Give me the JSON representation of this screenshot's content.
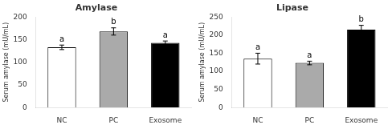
{
  "chart_data": [
    {
      "type": "bar",
      "title": "Amylase",
      "ylabel": "Serum amylase (mU/mL)",
      "categories": [
        "NC",
        "PC",
        "Exosome"
      ],
      "values": [
        133,
        168,
        143
      ],
      "errors": [
        5,
        8,
        4
      ],
      "colors": [
        "white",
        "#aaaaaa",
        "black"
      ],
      "annotations": [
        "a",
        "b",
        "a"
      ],
      "ylim": [
        0,
        200
      ],
      "yticks": [
        0,
        50,
        100,
        150,
        200
      ],
      "grid": false
    },
    {
      "type": "bar",
      "title": "Lipase",
      "ylabel": "Serum amylase (mU/mL)",
      "categories": [
        "NC",
        "PC",
        "Exosome"
      ],
      "values": [
        135,
        123,
        215
      ],
      "errors": [
        15,
        5,
        12
      ],
      "colors": [
        "white",
        "#aaaaaa",
        "black"
      ],
      "annotations": [
        "a",
        "a",
        "b"
      ],
      "ylim": [
        0,
        250
      ],
      "yticks": [
        0,
        50,
        100,
        150,
        200,
        250
      ],
      "grid": false
    }
  ]
}
